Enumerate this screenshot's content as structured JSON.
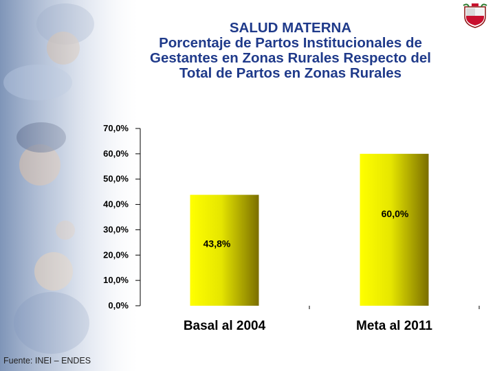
{
  "header": {
    "title_lines": [
      "SALUD MATERNA",
      "Porcentaje de Partos Institucionales de",
      "Gestantes en Zonas Rurales Respecto del",
      "Total de Partos en Zonas Rurales"
    ]
  },
  "footer": {
    "source": "Fuente: INEI – ENDES"
  },
  "chart_data": {
    "type": "bar",
    "title": "",
    "xlabel": "",
    "ylabel": "",
    "categories": [
      "Basal al 2004",
      "Meta al 2011"
    ],
    "values": [
      43.8,
      60.0
    ],
    "data_labels": [
      "43,8%",
      "60,0%"
    ],
    "ylim": [
      0,
      70
    ],
    "yticks": [
      "0,0%",
      "10,0%",
      "20,0%",
      "30,0%",
      "40,0%",
      "50,0%",
      "60,0%",
      "70,0%"
    ],
    "grid": false,
    "legend": "none",
    "bar_color": "#ffff00"
  }
}
